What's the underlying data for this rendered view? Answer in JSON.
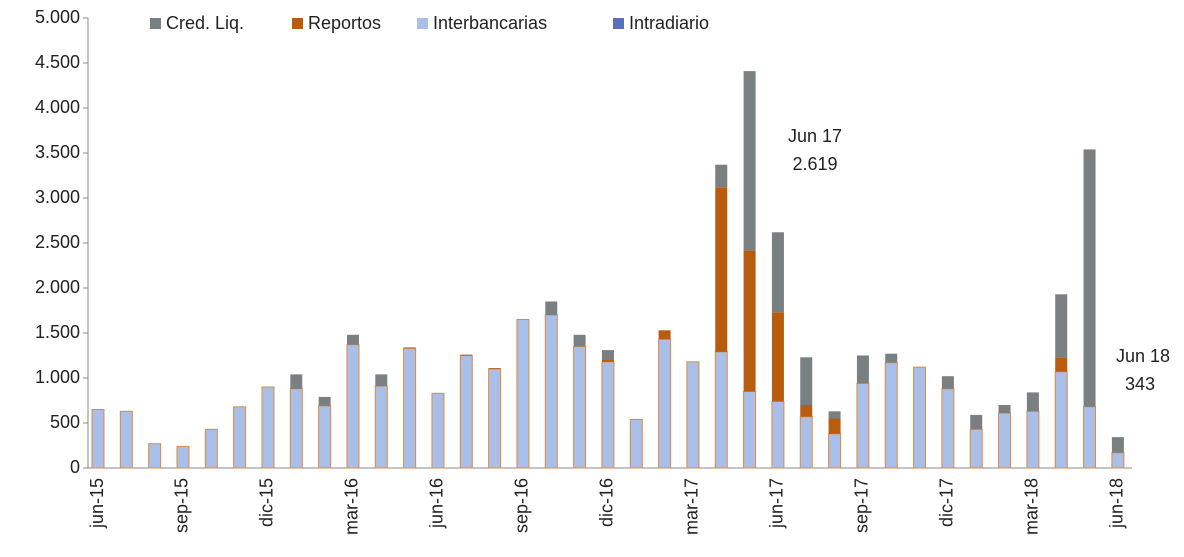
{
  "chart_data": {
    "type": "stacked_bar",
    "categories": [
      "jun-15",
      null,
      null,
      "sep-15",
      null,
      null,
      "dic-15",
      null,
      null,
      "mar-16",
      null,
      null,
      "jun-16",
      null,
      null,
      "sep-16",
      null,
      null,
      "dic-16",
      null,
      null,
      "mar-17",
      null,
      null,
      "jun-17",
      null,
      null,
      "sep-17",
      null,
      null,
      "dic-17",
      null,
      null,
      "mar-18",
      null,
      null,
      "jun-18"
    ],
    "series": [
      {
        "name": "Intradiario",
        "color": "#5b6fbf",
        "values": [
          0,
          0,
          0,
          0,
          0,
          0,
          0,
          0,
          0,
          0,
          0,
          0,
          0,
          0,
          0,
          0,
          0,
          0,
          0,
          0,
          0,
          0,
          0,
          0,
          0,
          0,
          0,
          0,
          0,
          0,
          0,
          0,
          0,
          0,
          0,
          0,
          0
        ]
      },
      {
        "name": "Interbancarias",
        "color": "#a9bfe8",
        "values": [
          650,
          630,
          270,
          240,
          430,
          680,
          900,
          880,
          690,
          1370,
          910,
          1330,
          830,
          1250,
          1100,
          1650,
          1700,
          1350,
          1180,
          540,
          1430,
          1180,
          1290,
          850,
          740,
          570,
          380,
          940,
          1170,
          1120,
          880,
          430,
          610,
          630,
          1070,
          680,
          170
        ]
      },
      {
        "name": "Reportos",
        "color": "#b85c10",
        "values": [
          0,
          0,
          0,
          0,
          0,
          0,
          0,
          0,
          0,
          0,
          0,
          10,
          0,
          10,
          10,
          0,
          0,
          0,
          20,
          0,
          100,
          0,
          1830,
          1570,
          990,
          130,
          170,
          0,
          0,
          0,
          0,
          0,
          0,
          0,
          160,
          0,
          0
        ]
      },
      {
        "name": "Cred. Liq.",
        "color": "#7a7f82",
        "values": [
          0,
          0,
          0,
          0,
          0,
          0,
          0,
          160,
          100,
          110,
          130,
          0,
          0,
          0,
          0,
          0,
          150,
          130,
          110,
          0,
          0,
          0,
          250,
          1990,
          889,
          530,
          80,
          310,
          100,
          0,
          140,
          160,
          90,
          210,
          700,
          2860,
          173
        ]
      }
    ],
    "legend_order": [
      "Cred. Liq.",
      "Reportos",
      "Interbancarias",
      "Intradiario"
    ],
    "bar_outline": "#e08a3c",
    "ylim": [
      0,
      5000
    ],
    "yticks": [
      0,
      500,
      {
        "value": 1000,
        "label": "1.000"
      },
      {
        "value": 1500,
        "label": "1.500"
      },
      {
        "value": 2000,
        "label": "2.000"
      },
      {
        "value": 2500,
        "label": "2.500"
      },
      {
        "value": 3000,
        "label": "3.000"
      },
      {
        "value": 3500,
        "label": "3.500"
      },
      {
        "value": 4000,
        "label": "4.000"
      },
      {
        "value": 4500,
        "label": "4.500"
      },
      {
        "value": 5000,
        "label": "5.000"
      }
    ],
    "annotations": [
      {
        "label": "Jun 17",
        "value_label": "2.619"
      },
      {
        "label": "Jun 18",
        "value_label": "343"
      }
    ],
    "legend": "top"
  }
}
